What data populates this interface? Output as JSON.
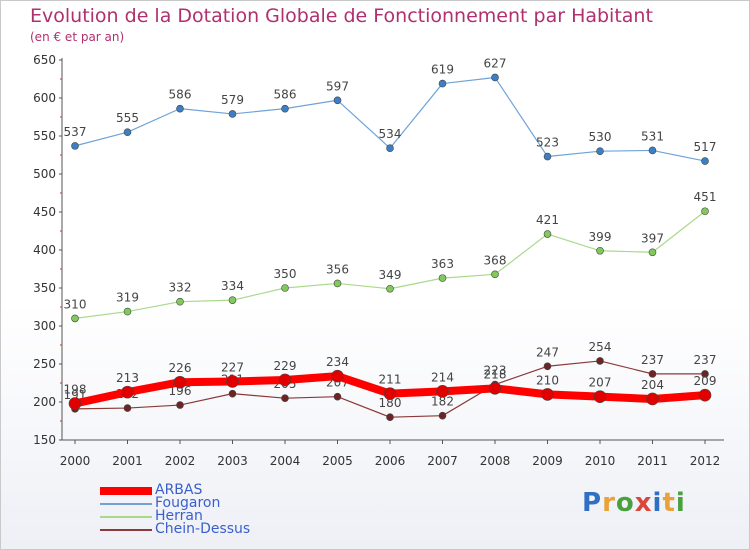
{
  "header": {
    "title": "Evolution de la Dotation Globale de Fonctionnement par Habitant",
    "subtitle": "(en € et par an)"
  },
  "logo": {
    "text": "Proxiti",
    "colors": [
      "#2f6fc4",
      "#e9a23b",
      "#4aa03f",
      "#d9473b",
      "#2f6fc4",
      "#e9a23b",
      "#4aa03f"
    ]
  },
  "chart_data": {
    "type": "line",
    "title": "Evolution de la Dotation Globale de Fonctionnement par Habitant",
    "subtitle": "(en € et par an)",
    "xlabel": "",
    "ylabel": "",
    "x": [
      "2000",
      "2001",
      "2002",
      "2003",
      "2004",
      "2005",
      "2006",
      "2007",
      "2008",
      "2009",
      "2010",
      "2011",
      "2012"
    ],
    "ylim": [
      150,
      650
    ],
    "yticks": [
      150,
      200,
      250,
      300,
      350,
      400,
      450,
      500,
      550,
      600,
      650
    ],
    "grid": false,
    "legend_position": "bottom-left",
    "series": [
      {
        "name": "Fougaron",
        "color": "#6fa3d8",
        "marker_color": "#3c7fc4",
        "values": [
          537,
          555,
          586,
          579,
          586,
          597,
          534,
          619,
          627,
          523,
          530,
          531,
          517
        ]
      },
      {
        "name": "Herran",
        "color": "#a9d98b",
        "marker_color": "#80c95a",
        "values": [
          310,
          319,
          332,
          334,
          350,
          356,
          349,
          363,
          368,
          421,
          399,
          397,
          451
        ]
      },
      {
        "name": "Chein-Dessus",
        "color": "#8b3a3a",
        "marker_color": "#6e2424",
        "values": [
          191,
          192,
          196,
          211,
          205,
          207,
          180,
          182,
          223,
          247,
          254,
          237,
          237
        ]
      },
      {
        "name": "ARBAS",
        "color": "#ff0000",
        "marker_color": "#e00000",
        "values": [
          198,
          213,
          226,
          227,
          229,
          234,
          211,
          214,
          218,
          210,
          207,
          204,
          209
        ]
      }
    ]
  }
}
